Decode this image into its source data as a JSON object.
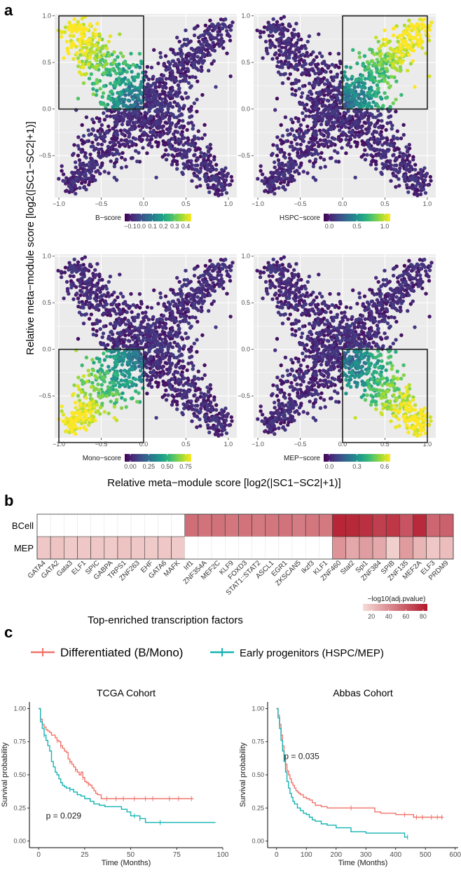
{
  "panel_labels": {
    "a": "a",
    "b": "b",
    "c": "c"
  },
  "colors": {
    "panel_bg": "#ebebeb",
    "grid": "#ffffff",
    "highlight_box": "#1f1f1f",
    "viridis_low": "#440154",
    "viridis_mid": "#21908c",
    "viridis_high": "#fde725",
    "heat_low": "#f6dcd8",
    "heat_high": "#b2182b",
    "differentiated": "#f0746b",
    "early": "#16b3b3"
  },
  "chart_data": [
    {
      "id": "a",
      "type": "scatter",
      "xlabel": "Relative meta−module score [log2(|SC1−SC2|+1)]",
      "ylabel": "Relative meta−module score [log2(|SC1−SC2|+1)]",
      "xlim": [
        -1.05,
        1.1
      ],
      "ylim": [
        -0.95,
        1.02
      ],
      "xticks": [
        -1.0,
        -0.5,
        0.0,
        0.5,
        1.0
      ],
      "xtick_labels": [
        "−1.0",
        "−0.5",
        "0.0",
        "0.5",
        "1.0"
      ],
      "yticks": [
        -0.5,
        0.0,
        0.5,
        1.0
      ],
      "ytick_labels": [
        "−0.5",
        "0.0",
        "0.5",
        "1.0"
      ],
      "subplots": [
        {
          "name": "B-score",
          "legend_title": "B−score",
          "highlight": [
            -1,
            0,
            0,
            1
          ],
          "quadrant": [
            -1,
            1
          ],
          "legend_labels": [
            "−0.1",
            "0.0",
            "0.1",
            "0.2",
            "0.3",
            "0.4"
          ]
        },
        {
          "name": "HSPC-score",
          "legend_title": "HSPC−score",
          "highlight": [
            0,
            1,
            0,
            1
          ],
          "quadrant": [
            1,
            1
          ],
          "legend_labels": [
            "0.0",
            "0.5",
            "1.0"
          ]
        },
        {
          "name": "Mono-score",
          "legend_title": "Mono−score",
          "highlight": [
            -1,
            0,
            -1,
            0
          ],
          "quadrant": [
            -1,
            -1
          ],
          "legend_labels": [
            "0.00",
            "0.25",
            "0.50",
            "0.75"
          ]
        },
        {
          "name": "MEP-score",
          "legend_title": "MEP−score",
          "highlight": [
            0,
            1,
            -1,
            0
          ],
          "quadrant": [
            1,
            -1
          ],
          "legend_labels": [
            "0.0",
            "0.3",
            "0.6"
          ]
        }
      ]
    },
    {
      "id": "b",
      "type": "heatmap",
      "xlabel": "Top-enriched transcription factors",
      "rows": [
        "BCell",
        "MEP"
      ],
      "columns": [
        "GATA4",
        "GATA2",
        "Gata3",
        "ELF1",
        "SPIC",
        "GABPA",
        "TRPS1",
        "ZNF263",
        "EHF",
        "GATA6",
        "MAFK",
        "Irf1",
        "ZNF354A",
        "MEF2C",
        "KLF9",
        "FOXD3",
        "STAT1::STAT2",
        "ASCL1",
        "EGR1",
        "ZKSCAN5",
        "Ikzf3",
        "KLF1",
        "ZNF460",
        "Stat2",
        "Spi1",
        "ZNF384",
        "SPIB",
        "ZNF135",
        "MEF2A",
        "ELF3",
        "PRDM9"
      ],
      "values": {
        "BCell": [
          null,
          null,
          null,
          null,
          null,
          null,
          null,
          null,
          null,
          null,
          null,
          52,
          50,
          51,
          49,
          50,
          48,
          49,
          50,
          47,
          49,
          48,
          80,
          79,
          76,
          70,
          73,
          62,
          78,
          55,
          57
        ],
        "MEP": [
          18,
          19,
          17,
          18,
          18,
          17,
          19,
          18,
          17,
          18,
          17,
          null,
          null,
          null,
          null,
          null,
          null,
          null,
          null,
          null,
          null,
          null,
          38,
          30,
          34,
          30,
          15,
          35,
          25,
          18,
          22
        ]
      },
      "legend_title": "−log10(adj.pvalue)",
      "legend_ticks": [
        20,
        40,
        60,
        80
      ],
      "legend_labels": [
        "20",
        "40",
        "60",
        "80"
      ],
      "value_range": [
        10,
        85
      ]
    },
    {
      "id": "c",
      "type": "line",
      "legend": [
        {
          "label": "Differentiated (B/Mono)",
          "color": "#f0746b"
        },
        {
          "label": "Early progenitors (HSPC/MEP)",
          "color": "#16b3b3"
        }
      ],
      "ylabel": "Survival probability",
      "xlabel": "Time (Months)",
      "yticks": [
        0,
        0.25,
        0.5,
        0.75,
        1.0
      ],
      "ytick_labels": [
        "0.00",
        "0.25",
        "0.50",
        "0.75",
        "1.00"
      ],
      "plots": [
        {
          "title": "TCGA Cohort",
          "pvalue": "p = 0.029",
          "xlim": [
            -5,
            100
          ],
          "xticks": [
            0,
            25,
            50,
            75,
            100
          ],
          "xtick_labels": [
            "0",
            "25",
            "50",
            "75",
            "100"
          ],
          "series": [
            {
              "name": "Differentiated (B/Mono)",
              "x": [
                0,
                1,
                2,
                3,
                4,
                5,
                6,
                7,
                8,
                9,
                10,
                11,
                12,
                13,
                14,
                15,
                16,
                17,
                18,
                19,
                20,
                21,
                22,
                23,
                24,
                25,
                26,
                27,
                28,
                29,
                30,
                31,
                32,
                34,
                84
              ],
              "y": [
                1.0,
                0.92,
                0.88,
                0.86,
                0.84,
                0.83,
                0.82,
                0.8,
                0.8,
                0.78,
                0.76,
                0.75,
                0.72,
                0.7,
                0.68,
                0.67,
                0.62,
                0.6,
                0.58,
                0.56,
                0.54,
                0.52,
                0.5,
                0.52,
                0.48,
                0.45,
                0.44,
                0.43,
                0.42,
                0.4,
                0.38,
                0.36,
                0.35,
                0.32,
                0.32
              ],
              "censor_x": [
                10,
                12,
                17,
                20,
                24,
                27,
                37,
                42,
                46,
                52,
                58,
                62,
                71,
                76,
                83
              ]
            },
            {
              "name": "Early progenitors (HSPC/MEP)",
              "x": [
                0,
                1,
                2,
                3,
                4,
                5,
                6,
                7,
                8,
                9,
                10,
                11,
                12,
                13,
                14,
                15,
                17,
                19,
                21,
                23,
                25,
                28,
                30,
                33,
                36,
                40,
                45,
                48,
                50,
                55,
                58,
                96
              ],
              "y": [
                1.0,
                0.9,
                0.85,
                0.8,
                0.76,
                0.72,
                0.68,
                0.6,
                0.56,
                0.52,
                0.5,
                0.47,
                0.44,
                0.42,
                0.41,
                0.4,
                0.39,
                0.37,
                0.35,
                0.34,
                0.32,
                0.3,
                0.28,
                0.27,
                0.26,
                0.26,
                0.24,
                0.22,
                0.19,
                0.17,
                0.14,
                0.14
              ],
              "censor_x": [
                3,
                17,
                52,
                55,
                66
              ]
            }
          ]
        },
        {
          "title": "Abbas Cohort",
          "pvalue": "p = 0.035",
          "xlim": [
            -30,
            610
          ],
          "xticks": [
            0,
            100,
            200,
            300,
            400,
            500,
            600
          ],
          "xtick_labels": [
            "0",
            "100",
            "200",
            "300",
            "400",
            "500",
            "600"
          ],
          "series": [
            {
              "name": "Differentiated (B/Mono)",
              "x": [
                0,
                5,
                10,
                15,
                20,
                25,
                30,
                35,
                40,
                45,
                50,
                55,
                60,
                65,
                70,
                75,
                80,
                90,
                100,
                110,
                120,
                130,
                150,
                170,
                200,
                250,
                330,
                350,
                400,
                460,
                560
              ],
              "y": [
                1.0,
                0.95,
                0.88,
                0.8,
                0.72,
                0.64,
                0.58,
                0.53,
                0.5,
                0.47,
                0.44,
                0.42,
                0.4,
                0.38,
                0.37,
                0.36,
                0.35,
                0.33,
                0.32,
                0.31,
                0.29,
                0.27,
                0.26,
                0.25,
                0.25,
                0.25,
                0.22,
                0.21,
                0.2,
                0.18,
                0.18
              ],
              "censor_x": [
                250,
                430,
                470,
                490,
                520,
                540,
                555
              ]
            },
            {
              "name": "Early progenitors (HSPC/MEP)",
              "x": [
                0,
                5,
                10,
                15,
                20,
                25,
                30,
                35,
                40,
                45,
                50,
                55,
                60,
                70,
                80,
                90,
                100,
                110,
                120,
                130,
                150,
                170,
                200,
                250,
                300,
                430,
                440
              ],
              "y": [
                1.0,
                0.93,
                0.85,
                0.76,
                0.68,
                0.6,
                0.52,
                0.45,
                0.4,
                0.36,
                0.33,
                0.3,
                0.28,
                0.25,
                0.23,
                0.21,
                0.2,
                0.18,
                0.16,
                0.15,
                0.13,
                0.12,
                0.1,
                0.07,
                0.06,
                0.03,
                0.03
              ],
              "censor_x": [
                440
              ]
            }
          ]
        }
      ]
    }
  ]
}
